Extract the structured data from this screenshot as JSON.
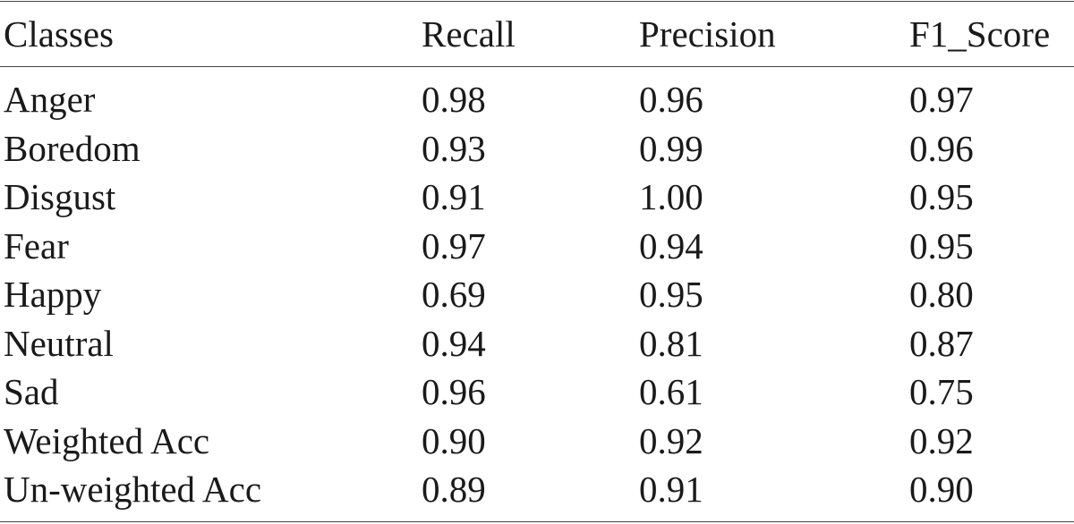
{
  "table": {
    "columns": [
      "Classes",
      "Recall",
      "Precision",
      "F1_Score"
    ],
    "rows": [
      [
        "Anger",
        "0.98",
        "0.96",
        "0.97"
      ],
      [
        "Boredom",
        "0.93",
        "0.99",
        "0.96"
      ],
      [
        "Disgust",
        "0.91",
        "1.00",
        "0.95"
      ],
      [
        "Fear",
        "0.97",
        "0.94",
        "0.95"
      ],
      [
        "Happy",
        "0.69",
        "0.95",
        "0.80"
      ],
      [
        "Neutral",
        "0.94",
        "0.81",
        "0.87"
      ],
      [
        "Sad",
        "0.96",
        "0.61",
        "0.75"
      ],
      [
        "Weighted Acc",
        "0.90",
        "0.92",
        "0.92"
      ],
      [
        "Un-weighted Acc",
        "0.89",
        "0.91",
        "0.90"
      ]
    ]
  }
}
